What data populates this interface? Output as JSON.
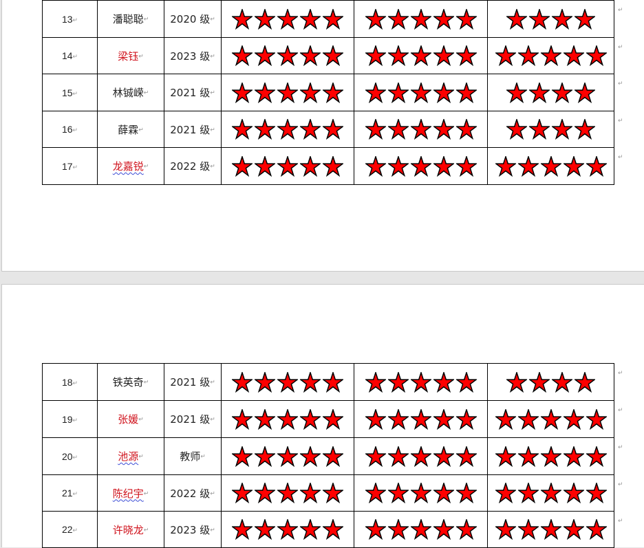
{
  "return_mark": "↵",
  "star_color": "#ff0000",
  "pages": [
    {
      "rows": [
        {
          "no": "13",
          "name": "潘聪聪",
          "name_red": false,
          "wavy": false,
          "grade": "2020 级",
          "ratings": [
            5,
            5,
            4
          ]
        },
        {
          "no": "14",
          "name": "梁钰",
          "name_red": true,
          "wavy": false,
          "grade": "2023 级",
          "ratings": [
            5,
            5,
            5
          ]
        },
        {
          "no": "15",
          "name": "林铖嵘",
          "name_red": false,
          "wavy": false,
          "grade": "2021 级",
          "ratings": [
            5,
            5,
            4
          ]
        },
        {
          "no": "16",
          "name": "薛霖",
          "name_red": false,
          "wavy": false,
          "grade": "2021 级",
          "ratings": [
            5,
            5,
            4
          ]
        },
        {
          "no": "17",
          "name": "龙嘉锐",
          "name_red": true,
          "wavy": true,
          "grade": "2022 级",
          "ratings": [
            5,
            5,
            5
          ]
        }
      ]
    },
    {
      "rows": [
        {
          "no": "18",
          "name": "铁英奇",
          "name_red": false,
          "wavy": false,
          "grade": "2021 级",
          "ratings": [
            5,
            5,
            4
          ]
        },
        {
          "no": "19",
          "name": "张媛",
          "name_red": true,
          "wavy": false,
          "grade": "2021 级",
          "ratings": [
            5,
            5,
            5
          ]
        },
        {
          "no": "20",
          "name": "池源",
          "name_red": true,
          "wavy": true,
          "grade": "教师",
          "ratings": [
            5,
            5,
            5
          ]
        },
        {
          "no": "21",
          "name": "陈纪宇",
          "name_red": true,
          "wavy": true,
          "grade": "2022 级",
          "ratings": [
            5,
            5,
            5
          ]
        },
        {
          "no": "22",
          "name": "许晓龙",
          "name_red": true,
          "wavy": false,
          "grade": "2023 级",
          "ratings": [
            5,
            5,
            5
          ]
        }
      ]
    }
  ]
}
